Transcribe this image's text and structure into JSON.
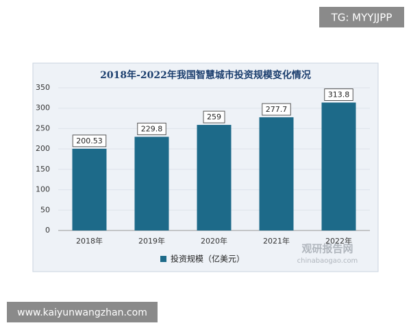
{
  "badge": "TG: MYYJJPP",
  "footer": "www.kaiyunwangzhan.com",
  "watermark": {
    "title": "观研报告网",
    "site": "chinabaogao.com"
  },
  "chart_data": {
    "type": "bar",
    "title": "2018年-2022年我国智慧城市投资规模变化情况",
    "categories": [
      "2018年",
      "2019年",
      "2020年",
      "2021年",
      "2022年"
    ],
    "series": [
      {
        "name": "投资规模（亿美元）",
        "color": "#1d6a89",
        "values": [
          200.53,
          229.8,
          259,
          277.7,
          313.8
        ]
      }
    ],
    "ylim": [
      0,
      350
    ],
    "yticks": [
      0,
      50,
      100,
      150,
      200,
      250,
      300,
      350
    ],
    "grid": true,
    "legend": "bottom"
  }
}
